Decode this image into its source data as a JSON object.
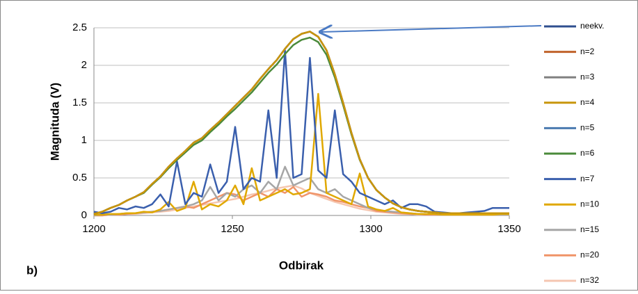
{
  "chart_data": {
    "type": "line",
    "xlabel": "Odbirak",
    "ylabel": "Magnituda (V)",
    "panel_label": "b)",
    "xlim": [
      1200,
      1350
    ],
    "xticks": [
      1200,
      1250,
      1300,
      1350
    ],
    "ylim": [
      0,
      2.5
    ],
    "yticks": [
      0,
      0.5,
      1,
      1.5,
      2,
      2.5
    ],
    "grid": true,
    "x": [
      1200,
      1203,
      1206,
      1209,
      1212,
      1215,
      1218,
      1221,
      1224,
      1227,
      1230,
      1233,
      1236,
      1239,
      1242,
      1245,
      1248,
      1251,
      1254,
      1257,
      1260,
      1263,
      1266,
      1269,
      1272,
      1275,
      1278,
      1281,
      1284,
      1287,
      1290,
      1293,
      1296,
      1299,
      1302,
      1305,
      1308,
      1311,
      1314,
      1317,
      1320,
      1323,
      1326,
      1329,
      1332,
      1335,
      1338,
      1341,
      1344,
      1347,
      1350
    ],
    "series": [
      {
        "name": "n=32",
        "color": "#f5c6b0",
        "values": [
          0,
          0,
          0.01,
          0.01,
          0.02,
          0.02,
          0.03,
          0.04,
          0.05,
          0.06,
          0.08,
          0.1,
          0.12,
          0.14,
          0.16,
          0.18,
          0.2,
          0.22,
          0.25,
          0.28,
          0.3,
          0.33,
          0.36,
          0.38,
          0.4,
          0.36,
          0.3,
          0.26,
          0.22,
          0.18,
          0.15,
          0.12,
          0.09,
          0.07,
          0.05,
          0.04,
          0.03,
          0.02,
          0.02,
          0.01,
          0.01,
          0.01,
          0.01,
          0.01,
          0.01,
          0.01,
          0.01,
          0.01,
          0.01,
          0.01,
          0.01
        ]
      },
      {
        "name": "n=20",
        "color": "#f0956a",
        "values": [
          0,
          0,
          0.01,
          0.01,
          0.02,
          0.03,
          0.04,
          0.05,
          0.06,
          0.08,
          0.1,
          0.12,
          0.1,
          0.15,
          0.2,
          0.25,
          0.3,
          0.28,
          0.2,
          0.25,
          0.3,
          0.25,
          0.35,
          0.3,
          0.38,
          0.25,
          0.3,
          0.28,
          0.25,
          0.2,
          0.18,
          0.15,
          0.12,
          0.1,
          0.06,
          0.05,
          0.04,
          0.03,
          0.02,
          0.02,
          0.01,
          0.01,
          0.01,
          0.01,
          0.01,
          0.01,
          0.01,
          0.01,
          0.01,
          0.01,
          0.01
        ]
      },
      {
        "name": "n=15",
        "color": "#a6a6a6",
        "values": [
          0,
          0.01,
          0.01,
          0.02,
          0.03,
          0.03,
          0.04,
          0.05,
          0.06,
          0.08,
          0.1,
          0.12,
          0.15,
          0.2,
          0.38,
          0.2,
          0.3,
          0.25,
          0.35,
          0.4,
          0.3,
          0.45,
          0.35,
          0.65,
          0.4,
          0.45,
          0.5,
          0.35,
          0.3,
          0.35,
          0.25,
          0.2,
          0.15,
          0.1,
          0.08,
          0.06,
          0.05,
          0.04,
          0.03,
          0.02,
          0.02,
          0.02,
          0.01,
          0.01,
          0.01,
          0.01,
          0.01,
          0.01,
          0.01,
          0.01,
          0.01
        ]
      },
      {
        "name": "n=10",
        "color": "#e0a800",
        "values": [
          0.01,
          0.01,
          0.02,
          0.02,
          0.03,
          0.03,
          0.05,
          0.04,
          0.08,
          0.18,
          0.06,
          0.1,
          0.45,
          0.08,
          0.15,
          0.12,
          0.2,
          0.4,
          0.15,
          0.63,
          0.2,
          0.25,
          0.3,
          0.35,
          0.28,
          0.3,
          0.35,
          1.62,
          0.3,
          0.25,
          0.2,
          0.15,
          0.56,
          0.12,
          0.08,
          0.06,
          0.1,
          0.04,
          0.03,
          0.02,
          0.02,
          0.02,
          0.01,
          0.01,
          0.01,
          0.01,
          0.01,
          0.01,
          0.01,
          0.02,
          0.02
        ]
      },
      {
        "name": "n=7",
        "color": "#3a5fad",
        "values": [
          0.05,
          0.03,
          0.05,
          0.1,
          0.08,
          0.12,
          0.1,
          0.15,
          0.28,
          0.12,
          0.72,
          0.15,
          0.3,
          0.25,
          0.68,
          0.3,
          0.45,
          1.18,
          0.35,
          0.5,
          0.45,
          1.4,
          0.5,
          2.2,
          0.5,
          0.55,
          2.1,
          0.6,
          0.5,
          1.4,
          0.55,
          0.45,
          0.3,
          0.25,
          0.2,
          0.15,
          0.2,
          0.1,
          0.15,
          0.15,
          0.12,
          0.05,
          0.04,
          0.03,
          0.03,
          0.04,
          0.05,
          0.06,
          0.1,
          0.1,
          0.1
        ]
      },
      {
        "name": "neekv.",
        "color": "#2f4f8f",
        "values": [
          0.02,
          0.05,
          0.1,
          0.14,
          0.2,
          0.25,
          0.31,
          0.42,
          0.52,
          0.65,
          0.76,
          0.86,
          0.97,
          1.03,
          1.14,
          1.24,
          1.35,
          1.46,
          1.57,
          1.68,
          1.82,
          1.95,
          2.07,
          2.22,
          2.35,
          2.42,
          2.45,
          2.38,
          2.2,
          1.88,
          1.5,
          1.1,
          0.75,
          0.5,
          0.34,
          0.24,
          0.16,
          0.11,
          0.08,
          0.06,
          0.05,
          0.04,
          0.03,
          0.03,
          0.03,
          0.03,
          0.03,
          0.03,
          0.03,
          0.03,
          0.03
        ]
      },
      {
        "name": "n=5",
        "color": "#4a7ab0",
        "values": [
          0.02,
          0.05,
          0.1,
          0.14,
          0.2,
          0.25,
          0.31,
          0.42,
          0.52,
          0.65,
          0.76,
          0.86,
          0.97,
          1.03,
          1.14,
          1.24,
          1.35,
          1.46,
          1.57,
          1.68,
          1.82,
          1.95,
          2.07,
          2.22,
          2.35,
          2.42,
          2.45,
          2.38,
          2.2,
          1.88,
          1.5,
          1.1,
          0.75,
          0.5,
          0.34,
          0.24,
          0.16,
          0.11,
          0.08,
          0.06,
          0.05,
          0.04,
          0.03,
          0.03,
          0.03,
          0.03,
          0.03,
          0.03,
          0.03,
          0.03,
          0.03
        ]
      },
      {
        "name": "n=3",
        "color": "#808080",
        "values": [
          0.02,
          0.05,
          0.1,
          0.14,
          0.2,
          0.25,
          0.31,
          0.42,
          0.52,
          0.65,
          0.76,
          0.86,
          0.97,
          1.03,
          1.14,
          1.24,
          1.35,
          1.46,
          1.57,
          1.68,
          1.82,
          1.95,
          2.07,
          2.22,
          2.35,
          2.42,
          2.45,
          2.38,
          2.2,
          1.88,
          1.5,
          1.1,
          0.75,
          0.5,
          0.34,
          0.24,
          0.16,
          0.11,
          0.08,
          0.06,
          0.05,
          0.04,
          0.03,
          0.03,
          0.03,
          0.03,
          0.03,
          0.03,
          0.03,
          0.03,
          0.03
        ]
      },
      {
        "name": "n=6",
        "color": "#4a8a3a",
        "values": [
          0.02,
          0.05,
          0.1,
          0.14,
          0.2,
          0.25,
          0.3,
          0.41,
          0.51,
          0.63,
          0.74,
          0.84,
          0.94,
          1.0,
          1.11,
          1.21,
          1.32,
          1.42,
          1.53,
          1.64,
          1.77,
          1.9,
          2.01,
          2.15,
          2.27,
          2.34,
          2.37,
          2.31,
          2.14,
          1.84,
          1.47,
          1.08,
          0.74,
          0.5,
          0.34,
          0.24,
          0.16,
          0.11,
          0.08,
          0.06,
          0.05,
          0.04,
          0.03,
          0.03,
          0.03,
          0.03,
          0.03,
          0.03,
          0.03,
          0.03,
          0.03
        ]
      },
      {
        "name": "n=2",
        "color": "#c0622a",
        "values": [
          0.02,
          0.05,
          0.1,
          0.14,
          0.2,
          0.25,
          0.31,
          0.42,
          0.52,
          0.65,
          0.76,
          0.86,
          0.97,
          1.03,
          1.14,
          1.24,
          1.35,
          1.46,
          1.57,
          1.68,
          1.82,
          1.95,
          2.07,
          2.22,
          2.35,
          2.42,
          2.45,
          2.38,
          2.2,
          1.88,
          1.5,
          1.1,
          0.75,
          0.5,
          0.34,
          0.24,
          0.16,
          0.11,
          0.08,
          0.06,
          0.05,
          0.04,
          0.03,
          0.03,
          0.03,
          0.03,
          0.03,
          0.03,
          0.03,
          0.03,
          0.03
        ]
      },
      {
        "name": "n=4",
        "color": "#c8960c",
        "values": [
          0.02,
          0.05,
          0.1,
          0.14,
          0.2,
          0.25,
          0.31,
          0.42,
          0.52,
          0.65,
          0.76,
          0.86,
          0.97,
          1.03,
          1.14,
          1.24,
          1.35,
          1.46,
          1.57,
          1.68,
          1.82,
          1.95,
          2.07,
          2.22,
          2.35,
          2.42,
          2.45,
          2.38,
          2.2,
          1.88,
          1.5,
          1.1,
          0.75,
          0.5,
          0.34,
          0.24,
          0.16,
          0.11,
          0.08,
          0.06,
          0.05,
          0.04,
          0.03,
          0.03,
          0.03,
          0.03,
          0.03,
          0.03,
          0.03,
          0.03,
          0.03
        ]
      }
    ],
    "legend_order": [
      "neekv.",
      "n=2",
      "n=3",
      "n=4",
      "n=5",
      "n=6",
      "n=7",
      "n=10",
      "n=15",
      "n=20",
      "n=32"
    ]
  }
}
